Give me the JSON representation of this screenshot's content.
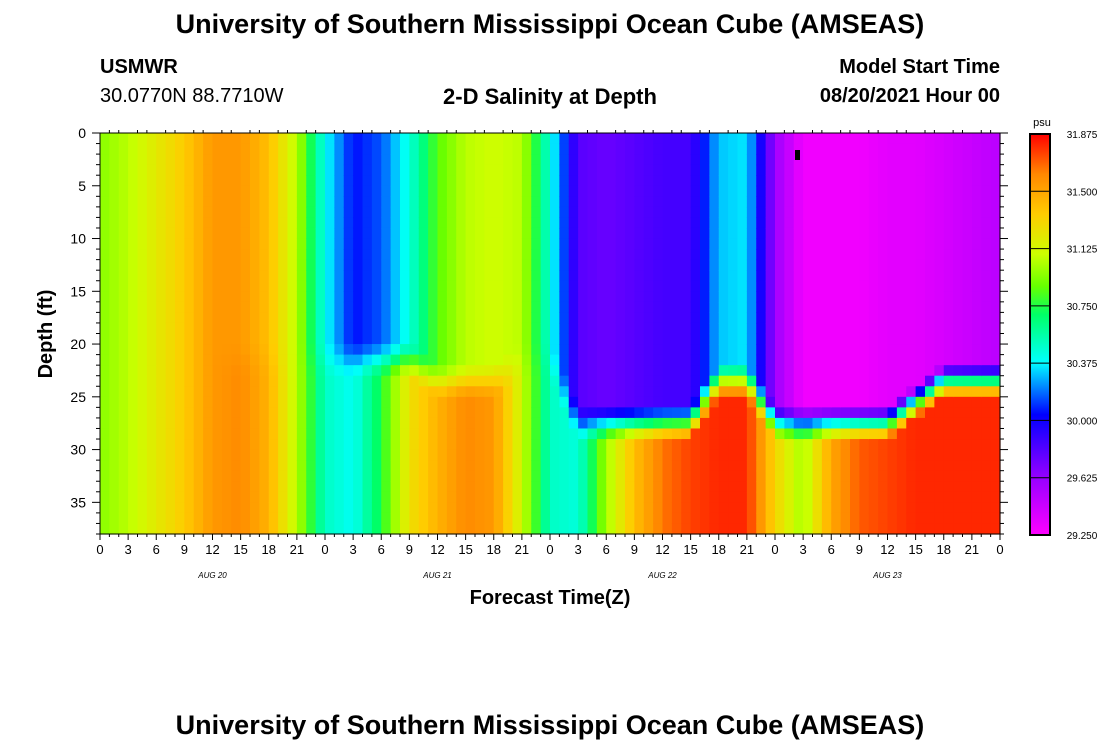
{
  "header": {
    "title": "University of Southern Mississippi Ocean Cube (AMSEAS)",
    "footer_title": "University of Southern Mississippi Ocean Cube (AMSEAS)",
    "station": "USMWR",
    "coords": "30.0770N  88.7710W",
    "plot_title": "2-D Salinity at Depth",
    "model_start_label": "Model Start Time",
    "model_start_value": "08/20/2021 Hour 00"
  },
  "colors": {
    "scale": [
      "#ff00ff",
      "#9900ff",
      "#0000ff",
      "#00ffff",
      "#00ff66",
      "#66ff00",
      "#ccff00",
      "#ffcc00",
      "#ff8800",
      "#ff0000"
    ]
  },
  "chart_data": {
    "type": "heatmap",
    "title": "2-D Salinity at Depth",
    "xlabel": "Forecast Time(Z)",
    "ylabel": "Depth (ft)",
    "x_tick_labels": [
      "0",
      "3",
      "6",
      "9",
      "12",
      "15",
      "18",
      "21",
      "0",
      "3",
      "6",
      "9",
      "12",
      "15",
      "18",
      "21",
      "0",
      "3",
      "6",
      "9",
      "12",
      "15",
      "18",
      "21",
      "0",
      "3",
      "6",
      "9",
      "12",
      "15",
      "18",
      "21",
      "0"
    ],
    "day_labels": [
      "AUG 20",
      "AUG 21",
      "AUG 22",
      "AUG 23"
    ],
    "x_range_hours": [
      0,
      96
    ],
    "y_ticks": [
      "0",
      "5",
      "10",
      "15",
      "20",
      "25",
      "30",
      "35"
    ],
    "ylim": [
      0,
      38
    ],
    "y_inverted": true,
    "colorbar": {
      "unit": "psu",
      "min": 29.25,
      "max": 31.875,
      "labels": [
        "31.875",
        "31.500",
        "31.125",
        "30.750",
        "30.375",
        "30.000",
        "29.625",
        "29.250"
      ]
    },
    "surface_layer": {
      "hours": [
        0,
        3,
        6,
        9,
        12,
        15,
        18,
        21,
        24,
        27,
        30,
        33,
        36,
        39,
        42,
        45,
        48,
        51,
        54,
        57,
        60,
        63,
        66,
        69,
        72,
        75,
        78,
        81,
        84,
        87,
        90,
        93,
        96
      ],
      "salinity": [
        30.95,
        31.05,
        31.2,
        31.35,
        31.55,
        31.55,
        31.4,
        31.05,
        30.4,
        30.05,
        30.15,
        30.45,
        30.85,
        31.05,
        31.1,
        31.05,
        30.45,
        29.8,
        29.75,
        29.8,
        29.85,
        29.85,
        30.3,
        30.35,
        29.6,
        29.3,
        29.3,
        29.3,
        29.35,
        29.35,
        29.4,
        29.45,
        29.5
      ]
    },
    "bottom_layer": {
      "hours": [
        0,
        3,
        6,
        9,
        12,
        15,
        18,
        21,
        24,
        27,
        30,
        33,
        36,
        39,
        42,
        45,
        48,
        51,
        54,
        57,
        60,
        63,
        66,
        69,
        72,
        75,
        78,
        81,
        84,
        87,
        90,
        93,
        96
      ],
      "salinity": [
        30.95,
        31.05,
        31.2,
        31.35,
        31.55,
        31.6,
        31.45,
        31.05,
        30.5,
        30.4,
        30.75,
        31.25,
        31.45,
        31.6,
        31.55,
        31.1,
        30.5,
        30.45,
        31.0,
        31.4,
        31.65,
        31.75,
        31.8,
        31.8,
        31.3,
        31.0,
        31.5,
        31.7,
        31.75,
        31.8,
        31.8,
        31.8,
        31.8
      ]
    },
    "bottom_layer_top_depth_ft": [
      22,
      22,
      22,
      22,
      22,
      22,
      22,
      22,
      22,
      22,
      22,
      22,
      24,
      24,
      24,
      22,
      22,
      28,
      28,
      28,
      28,
      28,
      24,
      24,
      28,
      28,
      28,
      28,
      28,
      26,
      24,
      24,
      24
    ]
  }
}
